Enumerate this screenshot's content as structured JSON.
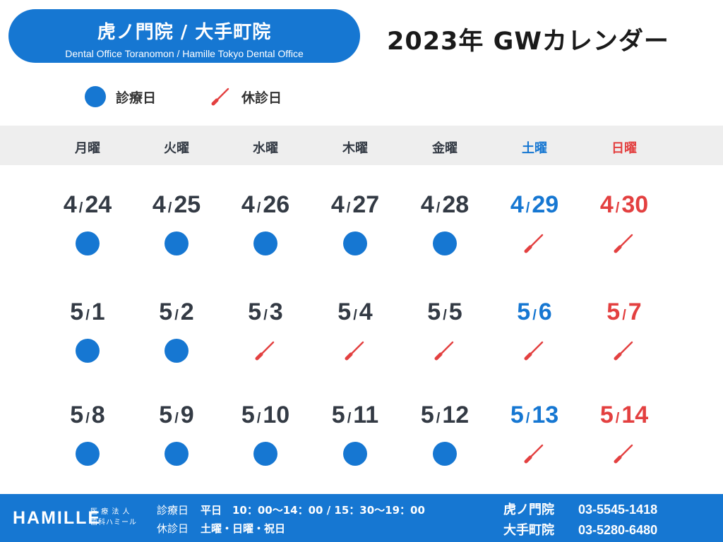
{
  "clinic": {
    "name": "虎ノ門院 / 大手町院",
    "subtitle": "Dental Office Toranomon / Hamille Tokyo Dental Office"
  },
  "title": "2023年 GWカレンダー",
  "legend": {
    "open_label": "診療日",
    "closed_label": "休診日"
  },
  "colors": {
    "accent": "#1677d2",
    "saturday": "#1677d2",
    "sunday": "#e34040",
    "closed_mark": "#e34040",
    "header_bg": "#eeeeee"
  },
  "weekdays": [
    {
      "label": "月曜",
      "type": "weekday"
    },
    {
      "label": "火曜",
      "type": "weekday"
    },
    {
      "label": "水曜",
      "type": "weekday"
    },
    {
      "label": "木曜",
      "type": "weekday"
    },
    {
      "label": "金曜",
      "type": "weekday"
    },
    {
      "label": "土曜",
      "type": "sat"
    },
    {
      "label": "日曜",
      "type": "sun"
    }
  ],
  "weeks": [
    [
      {
        "month": "4",
        "day": "24",
        "status": "open"
      },
      {
        "month": "4",
        "day": "25",
        "status": "open"
      },
      {
        "month": "4",
        "day": "26",
        "status": "open"
      },
      {
        "month": "4",
        "day": "27",
        "status": "open"
      },
      {
        "month": "4",
        "day": "28",
        "status": "open"
      },
      {
        "month": "4",
        "day": "29",
        "status": "closed"
      },
      {
        "month": "4",
        "day": "30",
        "status": "closed"
      }
    ],
    [
      {
        "month": "5",
        "day": "1",
        "status": "open"
      },
      {
        "month": "5",
        "day": "2",
        "status": "open"
      },
      {
        "month": "5",
        "day": "3",
        "status": "closed"
      },
      {
        "month": "5",
        "day": "4",
        "status": "closed"
      },
      {
        "month": "5",
        "day": "5",
        "status": "closed"
      },
      {
        "month": "5",
        "day": "6",
        "status": "closed"
      },
      {
        "month": "5",
        "day": "7",
        "status": "closed"
      }
    ],
    [
      {
        "month": "5",
        "day": "8",
        "status": "open"
      },
      {
        "month": "5",
        "day": "9",
        "status": "open"
      },
      {
        "month": "5",
        "day": "10",
        "status": "open"
      },
      {
        "month": "5",
        "day": "11",
        "status": "open"
      },
      {
        "month": "5",
        "day": "12",
        "status": "open"
      },
      {
        "month": "5",
        "day": "13",
        "status": "closed"
      },
      {
        "month": "5",
        "day": "14",
        "status": "closed"
      }
    ]
  ],
  "footer": {
    "brand": "HAMILLE",
    "brand_sub_1": "医 療 法 人",
    "brand_sub_2": "歯科ハミール",
    "hours_label": "診療日",
    "hours_value": "平日　10：00〜14：00 / 15：30〜19：00",
    "closed_label": "休診日",
    "closed_value": "土曜・日曜・祝日",
    "phones": [
      {
        "branch": "虎ノ門院",
        "tel": "03-5545-1418"
      },
      {
        "branch": "大手町院",
        "tel": "03-5280-6480"
      }
    ]
  }
}
